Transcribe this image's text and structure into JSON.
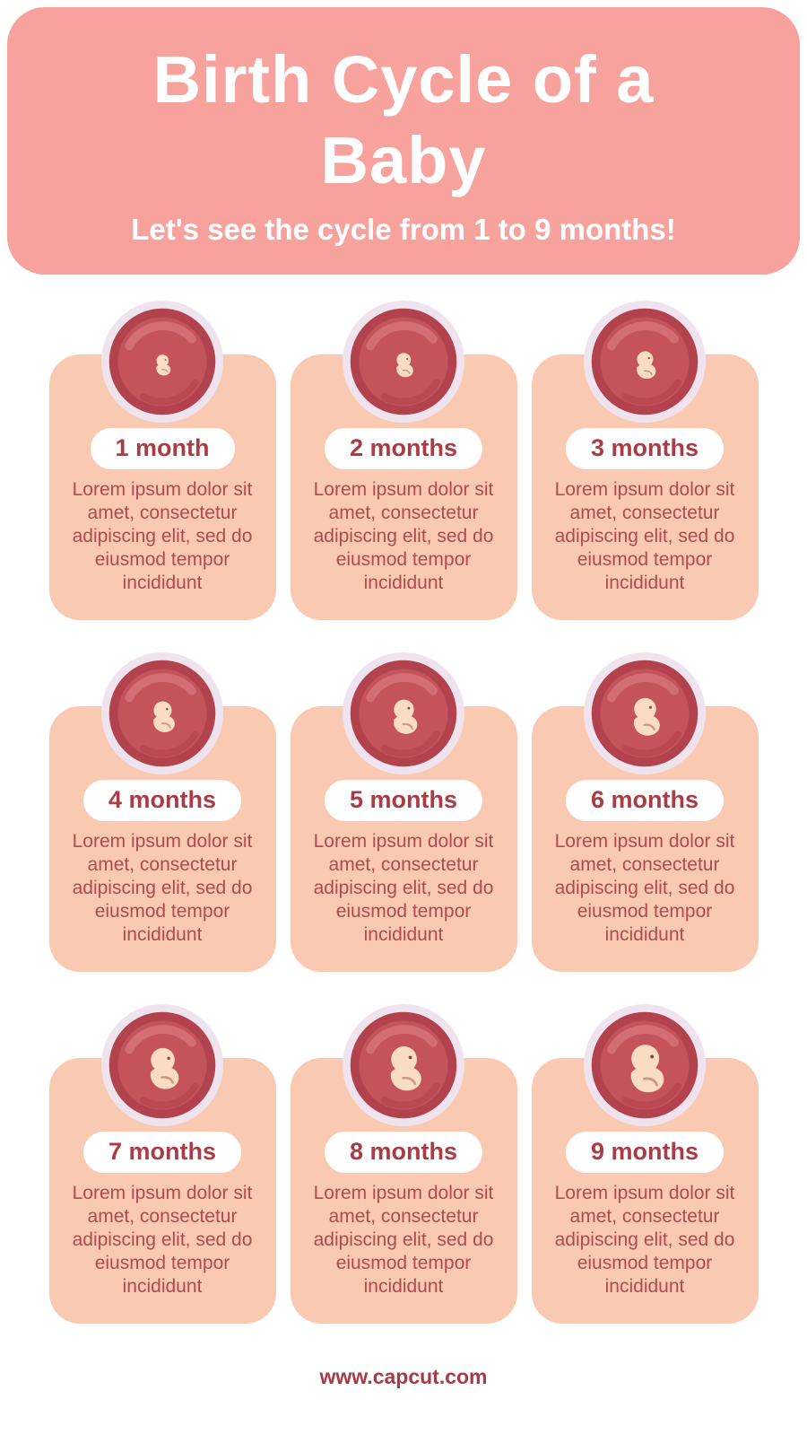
{
  "header": {
    "title_lines": [
      "Birth Cycle of a",
      "Baby"
    ],
    "subtitle": "Let's see the cycle from 1 to 9 months!",
    "bg_color": "#F7A29D",
    "text_color": "#FFFFFF"
  },
  "card_body": "Lorem ipsum dolor sit amet, consectetur adipiscing elit, sed do eiusmod tempor incididunt",
  "cards": [
    {
      "label": "1 month"
    },
    {
      "label": "2 months"
    },
    {
      "label": "3 months"
    },
    {
      "label": "4 months"
    },
    {
      "label": "5 months"
    },
    {
      "label": "6 months"
    },
    {
      "label": "7 months"
    },
    {
      "label": "8 months"
    },
    {
      "label": "9 months"
    }
  ],
  "footer": {
    "url": "www.capcut.com"
  },
  "colors": {
    "card_bg": "#F9C9B1",
    "pill_bg": "#FFFFFF",
    "label_text": "#A93C44",
    "body_text": "#B04A50",
    "footer_text": "#A63B47"
  },
  "illustration_colors": {
    "ring": "#EFE3EE",
    "womb_dark": "#B2424D",
    "womb_mid": "#C4535C",
    "womb_light": "#D6737A",
    "fetus_skin": "#F9DCC2",
    "fetus_feature": "#8A4A3F"
  }
}
